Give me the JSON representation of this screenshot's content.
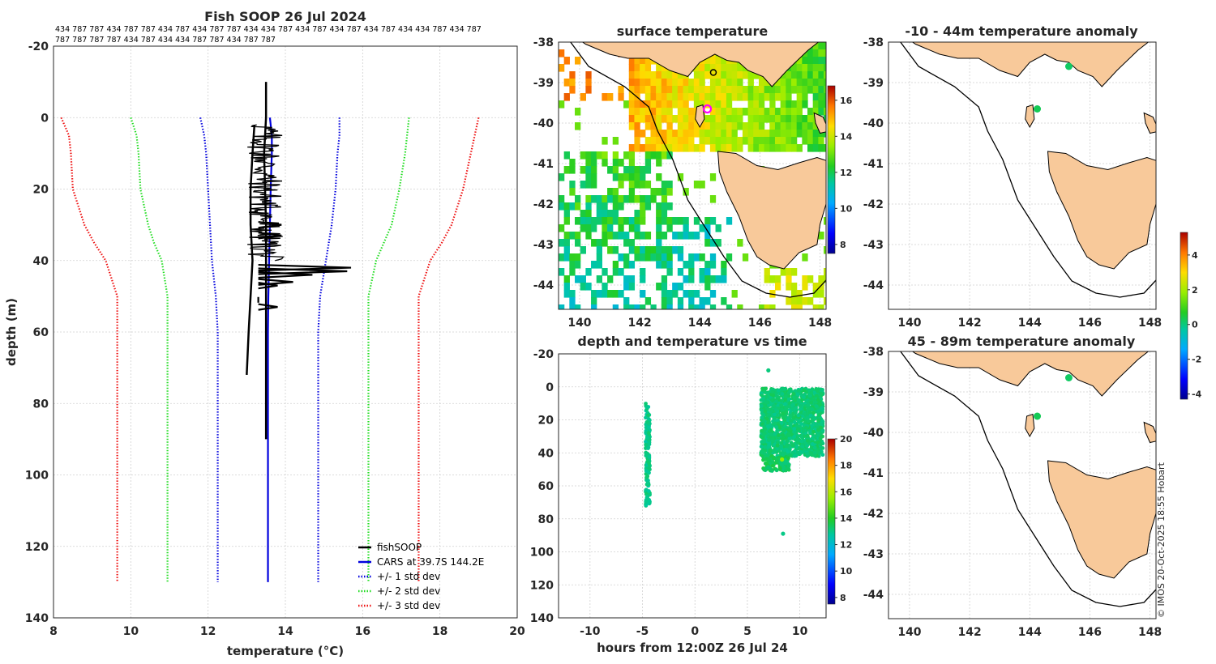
{
  "credit": "© IMOS 20-Oct-2025 18:55 Hobart",
  "chart_data": [
    {
      "id": "profile",
      "type": "line",
      "title": "Fish SOOP 26 Jul 2024",
      "header_ids_line1": "434 787 787 434 787 787 434 787 434 787 787 434 434 787 434 787 434 787 434 787 434 434 787 434 787",
      "header_ids_line2": "787 787 787 787 434 787 434 434 787 787 434 787 787",
      "xlabel": "temperature (°C)",
      "ylabel": "depth (m)",
      "xlim": [
        8,
        20
      ],
      "ylim": [
        -20,
        140
      ],
      "xticks": [
        8,
        10,
        12,
        14,
        16,
        18,
        20
      ],
      "yticks": [
        -20,
        0,
        20,
        40,
        60,
        80,
        100,
        120,
        140
      ],
      "legend": {
        "position": "bottom-right",
        "entries": [
          {
            "label": "fishSOOP",
            "color": "#000000",
            "style": "solid"
          },
          {
            "label": "CARS at 39.7S 144.2E",
            "color": "#0000dd",
            "style": "solid"
          },
          {
            "label": "+/- 1 std dev",
            "color": "#0000dd",
            "style": "dotted"
          },
          {
            "label": "+/- 2 std dev",
            "color": "#22dd22",
            "style": "dotted"
          },
          {
            "label": "+/- 3 std dev",
            "color": "#ee1111",
            "style": "dotted"
          }
        ]
      },
      "series": [
        {
          "name": "CARS mean",
          "color": "#0000dd",
          "style": "solid",
          "depth": [
            0,
            5,
            10,
            20,
            30,
            40,
            50,
            60,
            80,
            100,
            130
          ],
          "temp": [
            13.6,
            13.65,
            13.65,
            13.62,
            13.6,
            13.58,
            13.56,
            13.55,
            13.55,
            13.55,
            13.55
          ]
        },
        {
          "name": "-1 std",
          "color": "#0000dd",
          "style": "dotted",
          "depth": [
            0,
            5,
            10,
            20,
            30,
            40,
            50,
            60,
            80,
            100,
            130
          ],
          "temp": [
            11.8,
            11.9,
            11.95,
            12.0,
            12.05,
            12.1,
            12.2,
            12.25,
            12.25,
            12.25,
            12.25
          ]
        },
        {
          "name": "+1 std",
          "color": "#0000dd",
          "style": "dotted",
          "depth": [
            0,
            5,
            10,
            20,
            30,
            40,
            50,
            60,
            80,
            100,
            130
          ],
          "temp": [
            15.4,
            15.4,
            15.35,
            15.3,
            15.2,
            15.05,
            14.9,
            14.85,
            14.85,
            14.85,
            14.85
          ]
        },
        {
          "name": "-2 std",
          "color": "#22dd22",
          "style": "dotted",
          "depth": [
            0,
            5,
            10,
            20,
            30,
            35,
            40,
            50,
            60,
            80,
            100,
            130
          ],
          "temp": [
            10.0,
            10.15,
            10.2,
            10.25,
            10.45,
            10.6,
            10.8,
            10.95,
            10.95,
            10.95,
            10.95,
            10.95
          ]
        },
        {
          "name": "+2 std",
          "color": "#22dd22",
          "style": "dotted",
          "depth": [
            0,
            5,
            10,
            20,
            30,
            35,
            40,
            50,
            60,
            80,
            100,
            130
          ],
          "temp": [
            17.2,
            17.15,
            17.1,
            16.95,
            16.75,
            16.55,
            16.35,
            16.15,
            16.15,
            16.15,
            16.15,
            16.15
          ]
        },
        {
          "name": "-3 std",
          "color": "#ee1111",
          "style": "dotted",
          "depth": [
            0,
            5,
            10,
            20,
            30,
            35,
            40,
            50,
            60,
            80,
            100,
            130
          ],
          "temp": [
            8.2,
            8.4,
            8.45,
            8.5,
            8.8,
            9.05,
            9.35,
            9.65,
            9.65,
            9.65,
            9.65,
            9.65
          ]
        },
        {
          "name": "+3 std",
          "color": "#ee1111",
          "style": "dotted",
          "depth": [
            0,
            5,
            10,
            20,
            30,
            35,
            40,
            50,
            60,
            80,
            100,
            130
          ],
          "temp": [
            19.0,
            18.9,
            18.8,
            18.6,
            18.3,
            18.05,
            17.75,
            17.45,
            17.45,
            17.45,
            17.45,
            17.45
          ]
        }
      ],
      "fishsoop": {
        "color": "#000000",
        "casts": [
          {
            "depth": [
              -10,
              0,
              10,
              30,
              45,
              60,
              80,
              90
            ],
            "temp": [
              13.5,
              13.5,
              13.45,
              13.5,
              13.5,
              13.5,
              13.5,
              13.5
            ]
          },
          {
            "depth": [
              2,
              10,
              20,
              30,
              40,
              50,
              60,
              72
            ],
            "temp": [
              13.2,
              13.15,
              13.1,
              13.1,
              13.15,
              13.1,
              13.05,
              13.0
            ]
          }
        ],
        "band": {
          "depth_top": 2,
          "depth_bottom": 40,
          "temp_min": 13.0,
          "temp_max": 13.95
        },
        "spikes": [
          {
            "depth": 42,
            "temp": 15.7
          },
          {
            "depth": 43,
            "temp": 15.6
          },
          {
            "depth": 44,
            "temp": 14.7
          },
          {
            "depth": 46,
            "temp": 14.2
          },
          {
            "depth": 47,
            "temp": 13.8
          },
          {
            "depth": 51,
            "temp": 13.3
          },
          {
            "depth": 53,
            "temp": 13.8
          },
          {
            "depth": 33,
            "temp": 13.9
          },
          {
            "depth": 30,
            "temp": 13.9
          }
        ]
      }
    },
    {
      "id": "sst_map",
      "type": "heatmap",
      "title": "surface temperature",
      "xlim": [
        139.3,
        148.2
      ],
      "ylim": [
        -44.6,
        -38
      ],
      "xticks": [
        140,
        142,
        144,
        146,
        148
      ],
      "yticks": [
        -38,
        -39,
        -40,
        -41,
        -42,
        -43,
        -44
      ],
      "colorbar": {
        "range": [
          7.5,
          16.8
        ],
        "ticks": [
          8,
          10,
          12,
          14,
          16
        ]
      },
      "highlight_marker": {
        "lon": 144.25,
        "lat": -39.65,
        "color": "#ff00ff"
      },
      "coast_marker": {
        "lon": 144.45,
        "lat": -38.75
      }
    },
    {
      "id": "depth_time",
      "type": "scatter",
      "title": "depth and temperature vs time",
      "xlabel": "hours from 12:00Z 26 Jul 24",
      "xlim": [
        -13,
        12.5
      ],
      "ylim": [
        -20,
        140
      ],
      "xticks": [
        -10,
        -5,
        0,
        5,
        10
      ],
      "yticks": [
        -20,
        0,
        20,
        40,
        60,
        80,
        100,
        120,
        140
      ],
      "colorbar": {
        "range": [
          7.5,
          20
        ],
        "ticks": [
          8,
          10,
          12,
          14,
          16,
          18,
          20
        ]
      },
      "groups": [
        {
          "x_min": -4.7,
          "x_max": -4.3,
          "depth_min": 10,
          "depth_max": 72,
          "temp": 13.0
        },
        {
          "x_min": 6.3,
          "x_max": 12.2,
          "depth_min": 1,
          "depth_max": 42,
          "temp": 13.2
        },
        {
          "x_min": 6.5,
          "x_max": 9.0,
          "depth_min": 42,
          "depth_max": 51,
          "temp": 13.4
        }
      ],
      "isolated_points": [
        {
          "x": 7.0,
          "depth": -10,
          "temp": 13.1
        },
        {
          "x": 8.4,
          "depth": 89,
          "temp": 13.0
        },
        {
          "x": 8.3,
          "depth": 44,
          "temp": 15.5
        }
      ]
    },
    {
      "id": "anom_shallow",
      "type": "heatmap",
      "title": "-10 - 44m temperature anomaly",
      "xlim": [
        139.3,
        148.2
      ],
      "ylim": [
        -44.6,
        -38
      ],
      "xticks": [
        140,
        142,
        144,
        146,
        148
      ],
      "yticks": [
        -38,
        -39,
        -40,
        -41,
        -42,
        -43,
        -44
      ],
      "points": [
        {
          "lon": 144.25,
          "lat": -39.65,
          "anomaly": 0.3
        },
        {
          "lon": 145.3,
          "lat": -38.6,
          "anomaly": 0.2
        }
      ]
    },
    {
      "id": "anom_deep",
      "type": "heatmap",
      "title": "45 - 89m temperature anomaly",
      "xlim": [
        139.3,
        148.2
      ],
      "ylim": [
        -44.6,
        -38
      ],
      "xticks": [
        140,
        142,
        144,
        146,
        148
      ],
      "yticks": [
        -38,
        -39,
        -40,
        -41,
        -42,
        -43,
        -44
      ],
      "points": [
        {
          "lon": 144.25,
          "lat": -39.6,
          "anomaly": 0.3
        },
        {
          "lon": 145.3,
          "lat": -38.65,
          "anomaly": 0.2
        }
      ]
    },
    {
      "id": "anom_colorbar",
      "type": "colorbar",
      "range": [
        -4.3,
        5.3
      ],
      "ticks": [
        -4,
        -2,
        0,
        2,
        4
      ]
    }
  ]
}
